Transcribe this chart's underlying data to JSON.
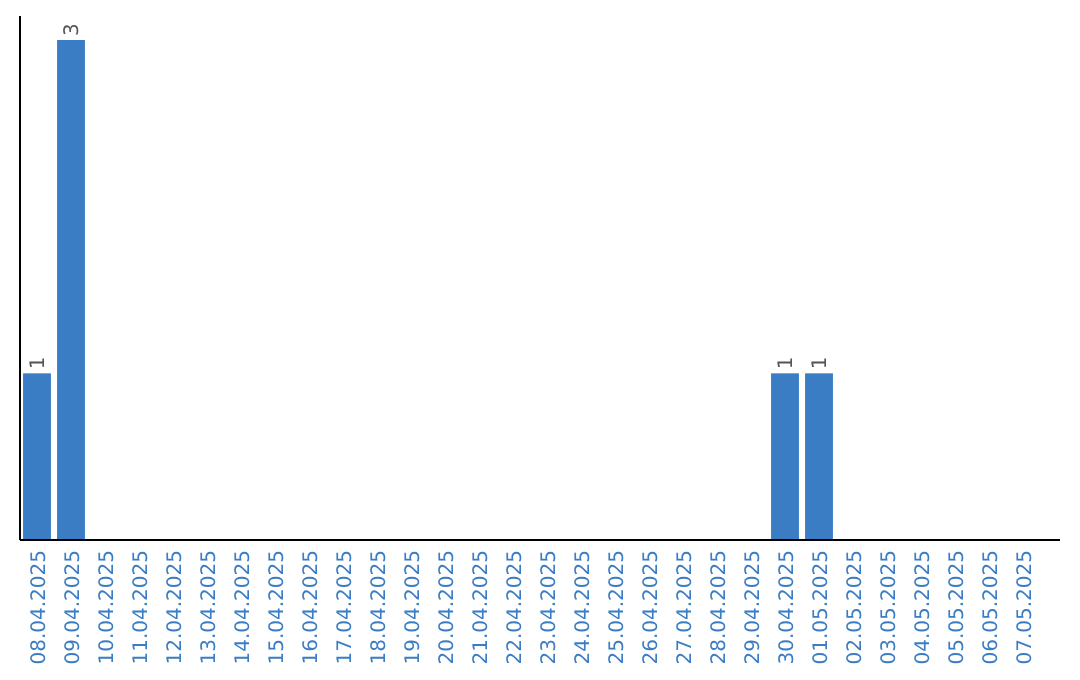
{
  "chart_data": {
    "type": "bar",
    "categories": [
      "08.04.2025",
      "09.04.2025",
      "10.04.2025",
      "11.04.2025",
      "12.04.2025",
      "13.04.2025",
      "14.04.2025",
      "15.04.2025",
      "16.04.2025",
      "17.04.2025",
      "18.04.2025",
      "19.04.2025",
      "20.04.2025",
      "21.04.2025",
      "22.04.2025",
      "23.04.2025",
      "24.04.2025",
      "25.04.2025",
      "26.04.2025",
      "27.04.2025",
      "28.04.2025",
      "29.04.2025",
      "30.04.2025",
      "01.05.2025",
      "02.05.2025",
      "03.05.2025",
      "04.05.2025",
      "05.05.2025",
      "06.05.2025",
      "07.05.2025"
    ],
    "values": [
      1,
      3,
      0,
      0,
      0,
      0,
      0,
      0,
      0,
      0,
      0,
      0,
      0,
      0,
      0,
      0,
      0,
      0,
      0,
      0,
      0,
      0,
      1,
      1,
      0,
      0,
      0,
      0,
      0,
      0
    ],
    "value_labels": [
      "1",
      "3",
      null,
      null,
      null,
      null,
      null,
      null,
      null,
      null,
      null,
      null,
      null,
      null,
      null,
      null,
      null,
      null,
      null,
      null,
      null,
      null,
      "1",
      "1",
      null,
      null,
      null,
      null,
      null,
      null
    ],
    "color": "#3b7dc4",
    "ylim": [
      0,
      3
    ],
    "tick_labels": "x",
    "grid": false
  }
}
